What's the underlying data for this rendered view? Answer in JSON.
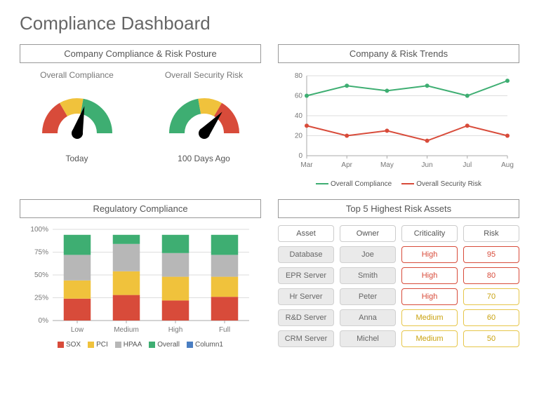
{
  "title": "Compliance Dashboard",
  "colors": {
    "green": "#3eae72",
    "yellow": "#f0c23c",
    "red": "#d84b3a",
    "grey": "#b7b7b7",
    "blue": "#4a7ec2",
    "axis": "#888888",
    "text": "#666666"
  },
  "posture": {
    "title": "Company Compliance & Risk Posture",
    "gauges": [
      {
        "subtitle": "Overall Compliance",
        "caption": "Today",
        "needle_angle_deg": 105,
        "segments": [
          {
            "from": 0,
            "to": 60,
            "color": "#d84b3a"
          },
          {
            "from": 60,
            "to": 100,
            "color": "#f0c23c"
          },
          {
            "from": 100,
            "to": 180,
            "color": "#3eae72"
          }
        ]
      },
      {
        "subtitle": "Overall Security Risk",
        "caption": "100 Days Ago",
        "needle_angle_deg": 130,
        "segments": [
          {
            "from": 0,
            "to": 80,
            "color": "#3eae72"
          },
          {
            "from": 80,
            "to": 120,
            "color": "#f0c23c"
          },
          {
            "from": 120,
            "to": 180,
            "color": "#d84b3a"
          }
        ]
      }
    ]
  },
  "trends": {
    "title": "Company & Risk Trends",
    "y_ticks": [
      0,
      20,
      40,
      60,
      80
    ],
    "ylim": [
      0,
      80
    ],
    "x_labels": [
      "Mar",
      "Apr",
      "May",
      "Jun",
      "Jul",
      "Aug"
    ],
    "series": [
      {
        "name": "Overall Compliance",
        "color": "#3eae72",
        "values": [
          60,
          70,
          65,
          70,
          60,
          75
        ]
      },
      {
        "name": "Overall Security Risk",
        "color": "#d84b3a",
        "values": [
          30,
          20,
          25,
          15,
          30,
          20
        ]
      }
    ]
  },
  "regulatory": {
    "title": "Regulatory Compliance",
    "y_ticks": [
      0,
      25,
      50,
      75,
      100
    ],
    "y_tick_labels": [
      "0%",
      "25%",
      "50%",
      "75%",
      "100%"
    ],
    "categories": [
      "Low",
      "Medium",
      "High",
      "Full"
    ],
    "segment_order": [
      "SOX",
      "PCI",
      "HPAA",
      "Overall"
    ],
    "segment_colors": {
      "SOX": "#d84b3a",
      "PCI": "#f0c23c",
      "HPAA": "#b7b7b7",
      "Overall": "#3eae72",
      "Column1": "#4a7ec2"
    },
    "stacks": [
      {
        "SOX": 24,
        "PCI": 20,
        "HPAA": 28,
        "Overall": 22
      },
      {
        "SOX": 28,
        "PCI": 26,
        "HPAA": 30,
        "Overall": 10
      },
      {
        "SOX": 22,
        "PCI": 26,
        "HPAA": 26,
        "Overall": 20
      },
      {
        "SOX": 26,
        "PCI": 22,
        "HPAA": 24,
        "Overall": 22
      }
    ],
    "legend": [
      "SOX",
      "PCI",
      "HPAA",
      "Overall",
      "Column1"
    ]
  },
  "top_assets": {
    "title": "Top 5 Highest Risk Assets",
    "columns": [
      "Asset",
      "Owner",
      "Criticality",
      "Risk"
    ],
    "rows": [
      {
        "asset": "Database",
        "owner": "Joe",
        "crit": "High",
        "crit_class": "high",
        "risk": "95",
        "risk_class": "risk-high"
      },
      {
        "asset": "EPR Server",
        "owner": "Smith",
        "crit": "High",
        "crit_class": "high",
        "risk": "80",
        "risk_class": "risk-high"
      },
      {
        "asset": "Hr Server",
        "owner": "Peter",
        "crit": "High",
        "crit_class": "high",
        "risk": "70",
        "risk_class": "risk-med"
      },
      {
        "asset": "R&D  Server",
        "owner": "Anna",
        "crit": "Medium",
        "crit_class": "med",
        "risk": "60",
        "risk_class": "risk-med"
      },
      {
        "asset": "CRM Server",
        "owner": "Michel",
        "crit": "Medium",
        "crit_class": "med",
        "risk": "50",
        "risk_class": "risk-med"
      }
    ]
  }
}
